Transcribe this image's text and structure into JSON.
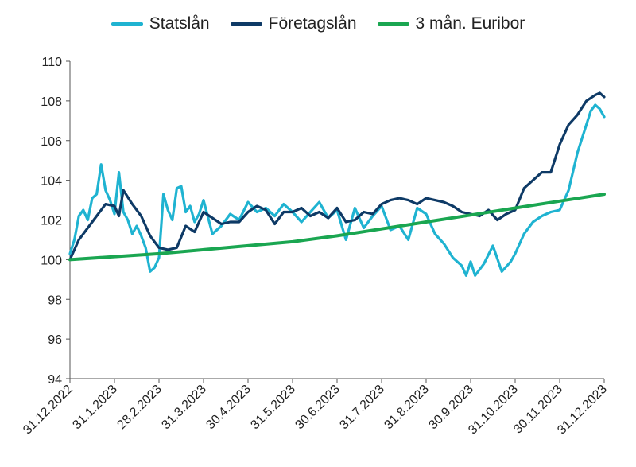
{
  "chart_data": {
    "type": "line",
    "title": "",
    "xlabel": "",
    "ylabel": "",
    "ylim": [
      94,
      110
    ],
    "y_ticks": [
      "94",
      "96",
      "98",
      "100",
      "102",
      "104",
      "106",
      "108",
      "110"
    ],
    "x_ticks": [
      "31.12.2022",
      "31.1.2023",
      "28.2.2023",
      "31.3.2023",
      "30.4.2023",
      "31.5.2023",
      "30.6.2023",
      "31.7.2023",
      "31.8.2023",
      "30.9.2023",
      "31.10.2023",
      "30.11.2023",
      "31.12.2023"
    ],
    "grid": false,
    "legend": "top-center",
    "x_unit": "months since 31.12.2022",
    "series": [
      {
        "name": "Statslån",
        "color": "#1fb3d1",
        "x": [
          0,
          0.1,
          0.2,
          0.3,
          0.4,
          0.5,
          0.6,
          0.7,
          0.8,
          0.9,
          1.0,
          1.1,
          1.2,
          1.3,
          1.4,
          1.5,
          1.6,
          1.7,
          1.8,
          1.9,
          2.0,
          2.1,
          2.2,
          2.3,
          2.4,
          2.5,
          2.6,
          2.7,
          2.8,
          2.9,
          3.0,
          3.2,
          3.4,
          3.6,
          3.8,
          4.0,
          4.2,
          4.4,
          4.6,
          4.8,
          5.0,
          5.2,
          5.4,
          5.6,
          5.8,
          6.0,
          6.2,
          6.4,
          6.6,
          6.8,
          7.0,
          7.2,
          7.4,
          7.6,
          7.8,
          8.0,
          8.2,
          8.4,
          8.6,
          8.8,
          8.9,
          9.0,
          9.1,
          9.3,
          9.5,
          9.7,
          9.9,
          10.0,
          10.2,
          10.4,
          10.6,
          10.8,
          11.0,
          11.2,
          11.4,
          11.6,
          11.7,
          11.8,
          11.9,
          12.0
        ],
        "values": [
          100.3,
          101.0,
          102.2,
          102.5,
          102.0,
          103.1,
          103.3,
          104.8,
          103.5,
          103.0,
          102.3,
          104.4,
          102.4,
          102.0,
          101.3,
          101.7,
          101.2,
          100.6,
          99.4,
          99.6,
          100.1,
          103.3,
          102.5,
          102.0,
          103.6,
          103.7,
          102.4,
          102.7,
          101.9,
          102.3,
          103.0,
          101.3,
          101.7,
          102.3,
          102.0,
          102.9,
          102.4,
          102.6,
          102.2,
          102.8,
          102.4,
          101.9,
          102.4,
          102.9,
          102.1,
          102.5,
          101.0,
          102.6,
          101.6,
          102.2,
          102.7,
          101.5,
          101.7,
          101.0,
          102.6,
          102.3,
          101.3,
          100.8,
          100.1,
          99.7,
          99.2,
          99.9,
          99.2,
          99.8,
          100.7,
          99.4,
          99.9,
          100.3,
          101.3,
          101.9,
          102.2,
          102.4,
          102.5,
          103.5,
          105.4,
          106.8,
          107.5,
          107.8,
          107.6,
          107.2
        ]
      },
      {
        "name": "Företagslån",
        "color": "#0e3a66",
        "x": [
          0,
          0.2,
          0.4,
          0.6,
          0.8,
          1.0,
          1.1,
          1.2,
          1.4,
          1.6,
          1.8,
          2.0,
          2.2,
          2.4,
          2.6,
          2.8,
          3.0,
          3.2,
          3.4,
          3.6,
          3.8,
          4.0,
          4.2,
          4.4,
          4.6,
          4.8,
          5.0,
          5.2,
          5.4,
          5.6,
          5.8,
          6.0,
          6.2,
          6.4,
          6.6,
          6.8,
          7.0,
          7.2,
          7.4,
          7.6,
          7.8,
          8.0,
          8.2,
          8.4,
          8.6,
          8.8,
          9.0,
          9.2,
          9.4,
          9.6,
          9.8,
          10.0,
          10.2,
          10.4,
          10.6,
          10.8,
          11.0,
          11.2,
          11.4,
          11.6,
          11.8,
          11.9,
          12.0
        ],
        "values": [
          100.0,
          101.0,
          101.6,
          102.2,
          102.8,
          102.7,
          102.2,
          103.5,
          102.8,
          102.2,
          101.2,
          100.6,
          100.5,
          100.6,
          101.7,
          101.4,
          102.4,
          102.1,
          101.8,
          101.9,
          101.9,
          102.4,
          102.7,
          102.5,
          101.8,
          102.4,
          102.4,
          102.6,
          102.2,
          102.4,
          102.1,
          102.6,
          101.9,
          102.0,
          102.4,
          102.3,
          102.8,
          103.0,
          103.1,
          103.0,
          102.8,
          103.1,
          103.0,
          102.9,
          102.7,
          102.4,
          102.3,
          102.2,
          102.5,
          102.0,
          102.3,
          102.5,
          103.6,
          104.0,
          104.4,
          104.4,
          105.8,
          106.8,
          107.3,
          108.0,
          108.3,
          108.4,
          108.2
        ]
      },
      {
        "name": "3 mån. Euribor",
        "color": "#1aa651",
        "x": [
          0,
          1,
          2,
          3,
          4,
          5,
          6,
          7,
          8,
          9,
          10,
          11,
          12
        ],
        "values": [
          100.0,
          100.15,
          100.3,
          100.5,
          100.7,
          100.9,
          101.2,
          101.55,
          101.9,
          102.25,
          102.6,
          102.95,
          103.3
        ]
      }
    ]
  }
}
